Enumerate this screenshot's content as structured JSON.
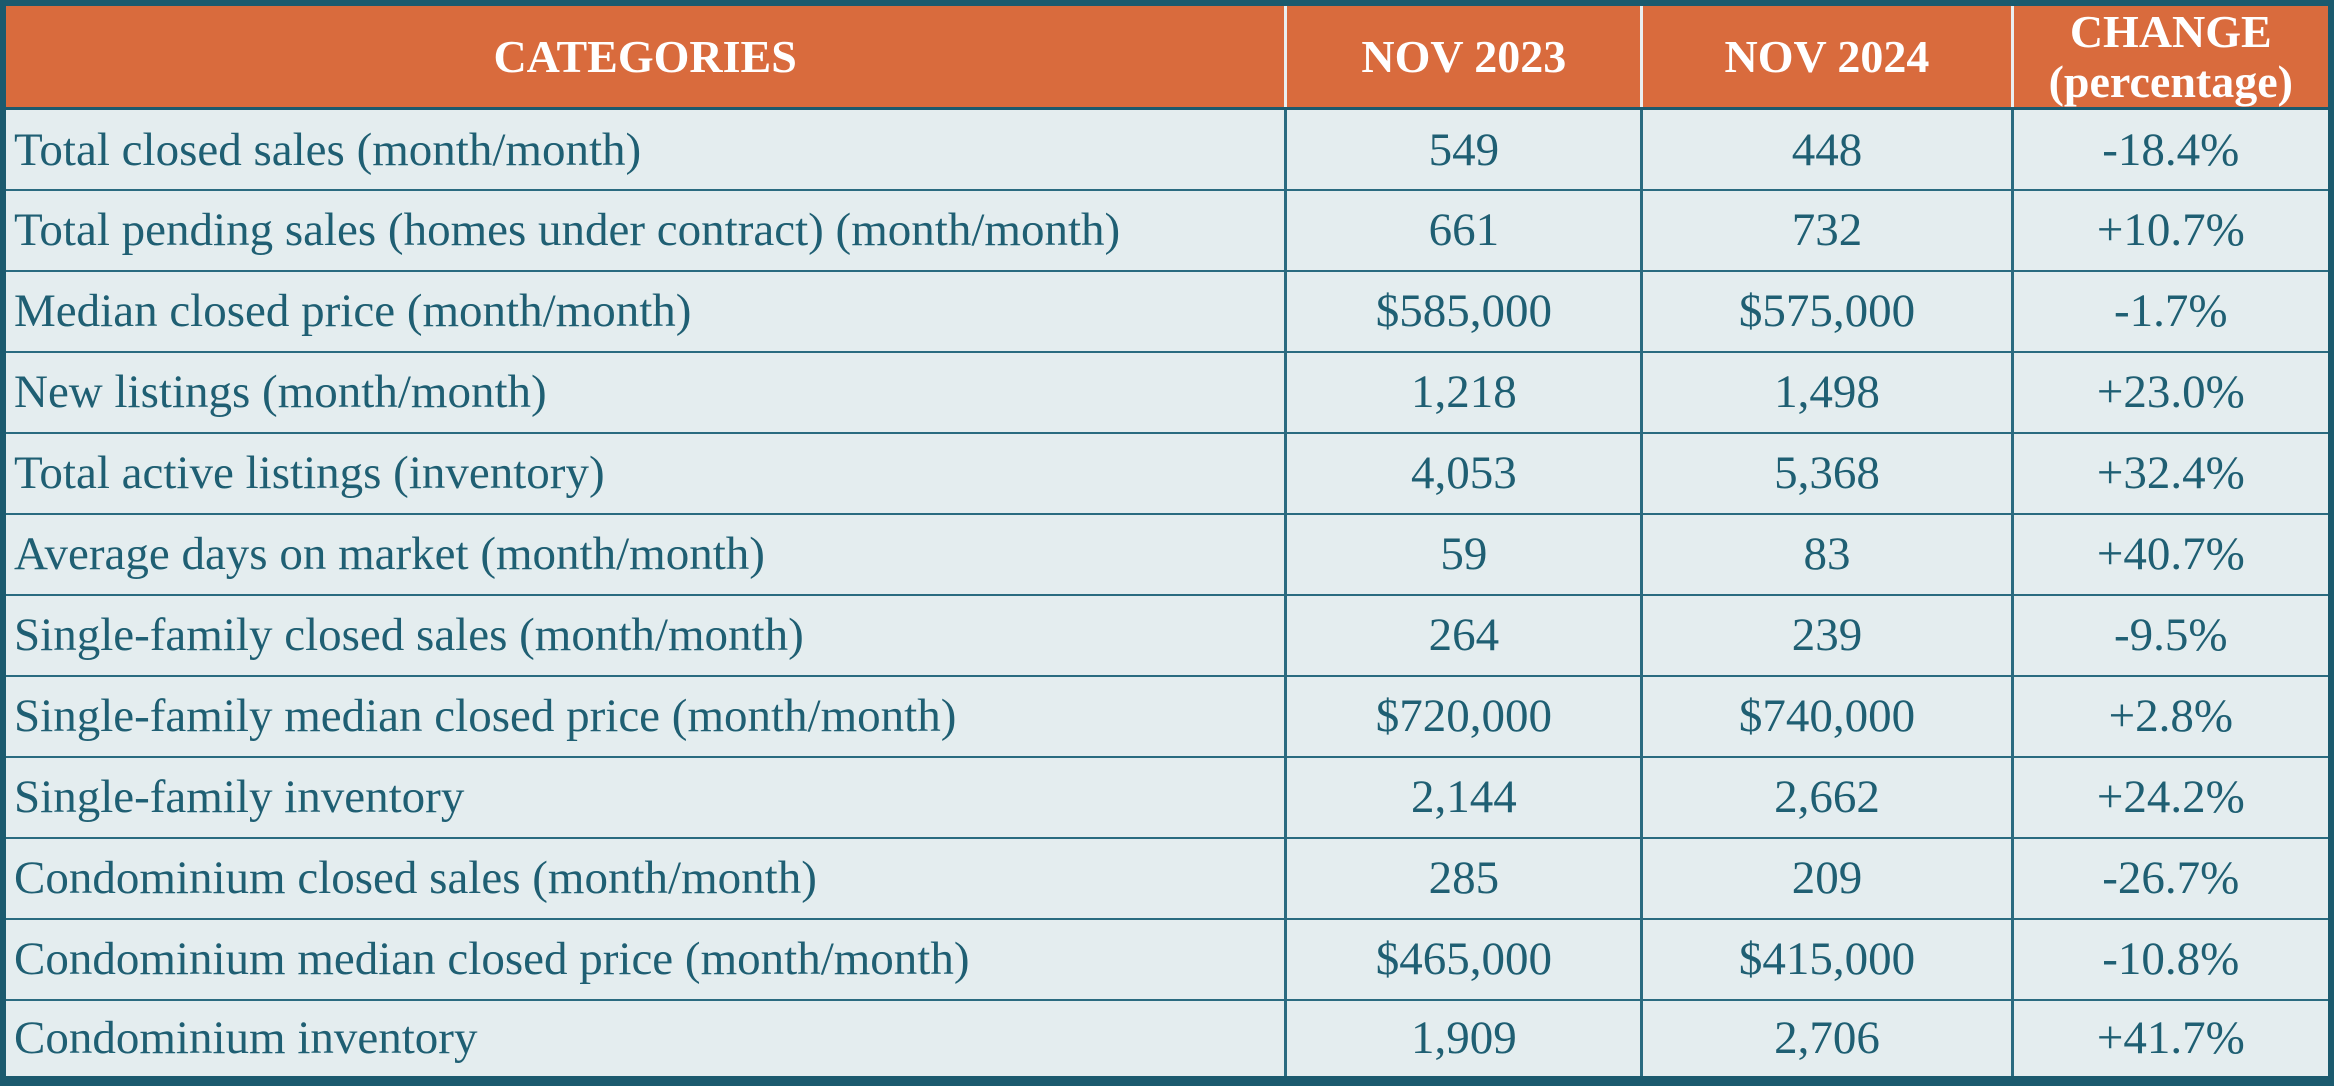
{
  "colors": {
    "header_bg": "#d96b3d",
    "header_text": "#ffffff",
    "row_bg": "#e4edef",
    "body_text": "#1f5f73",
    "border": "#1b5a6e",
    "grid": "#2a6b80"
  },
  "chart_data": {
    "type": "table",
    "columns": [
      "CATEGORIES",
      "NOV 2023",
      "NOV 2024",
      "CHANGE\n(percentage)"
    ],
    "rows": [
      [
        "Total closed sales (month/month)",
        "549",
        "448",
        "-18.4%"
      ],
      [
        "Total pending sales (homes under contract) (month/month)",
        "661",
        "732",
        "+10.7%"
      ],
      [
        "Median closed price (month/month)",
        "$585,000",
        "$575,000",
        "-1.7%"
      ],
      [
        "New listings (month/month)",
        "1,218",
        "1,498",
        "+23.0%"
      ],
      [
        "Total active listings (inventory)",
        "4,053",
        "5,368",
        "+32.4%"
      ],
      [
        "Average days on market (month/month)",
        "59",
        "83",
        "+40.7%"
      ],
      [
        "Single-family closed sales (month/month)",
        "264",
        "239",
        "-9.5%"
      ],
      [
        "Single-family median closed price (month/month)",
        "$720,000",
        "$740,000",
        "+2.8%"
      ],
      [
        "Single-family inventory",
        "2,144",
        "2,662",
        "+24.2%"
      ],
      [
        "Condominium closed sales (month/month)",
        "285",
        "209",
        "-26.7%"
      ],
      [
        "Condominium median closed price (month/month)",
        "$465,000",
        "$415,000",
        "-10.8%"
      ],
      [
        "Condominium inventory",
        "1,909",
        "2,706",
        "+41.7%"
      ]
    ]
  }
}
